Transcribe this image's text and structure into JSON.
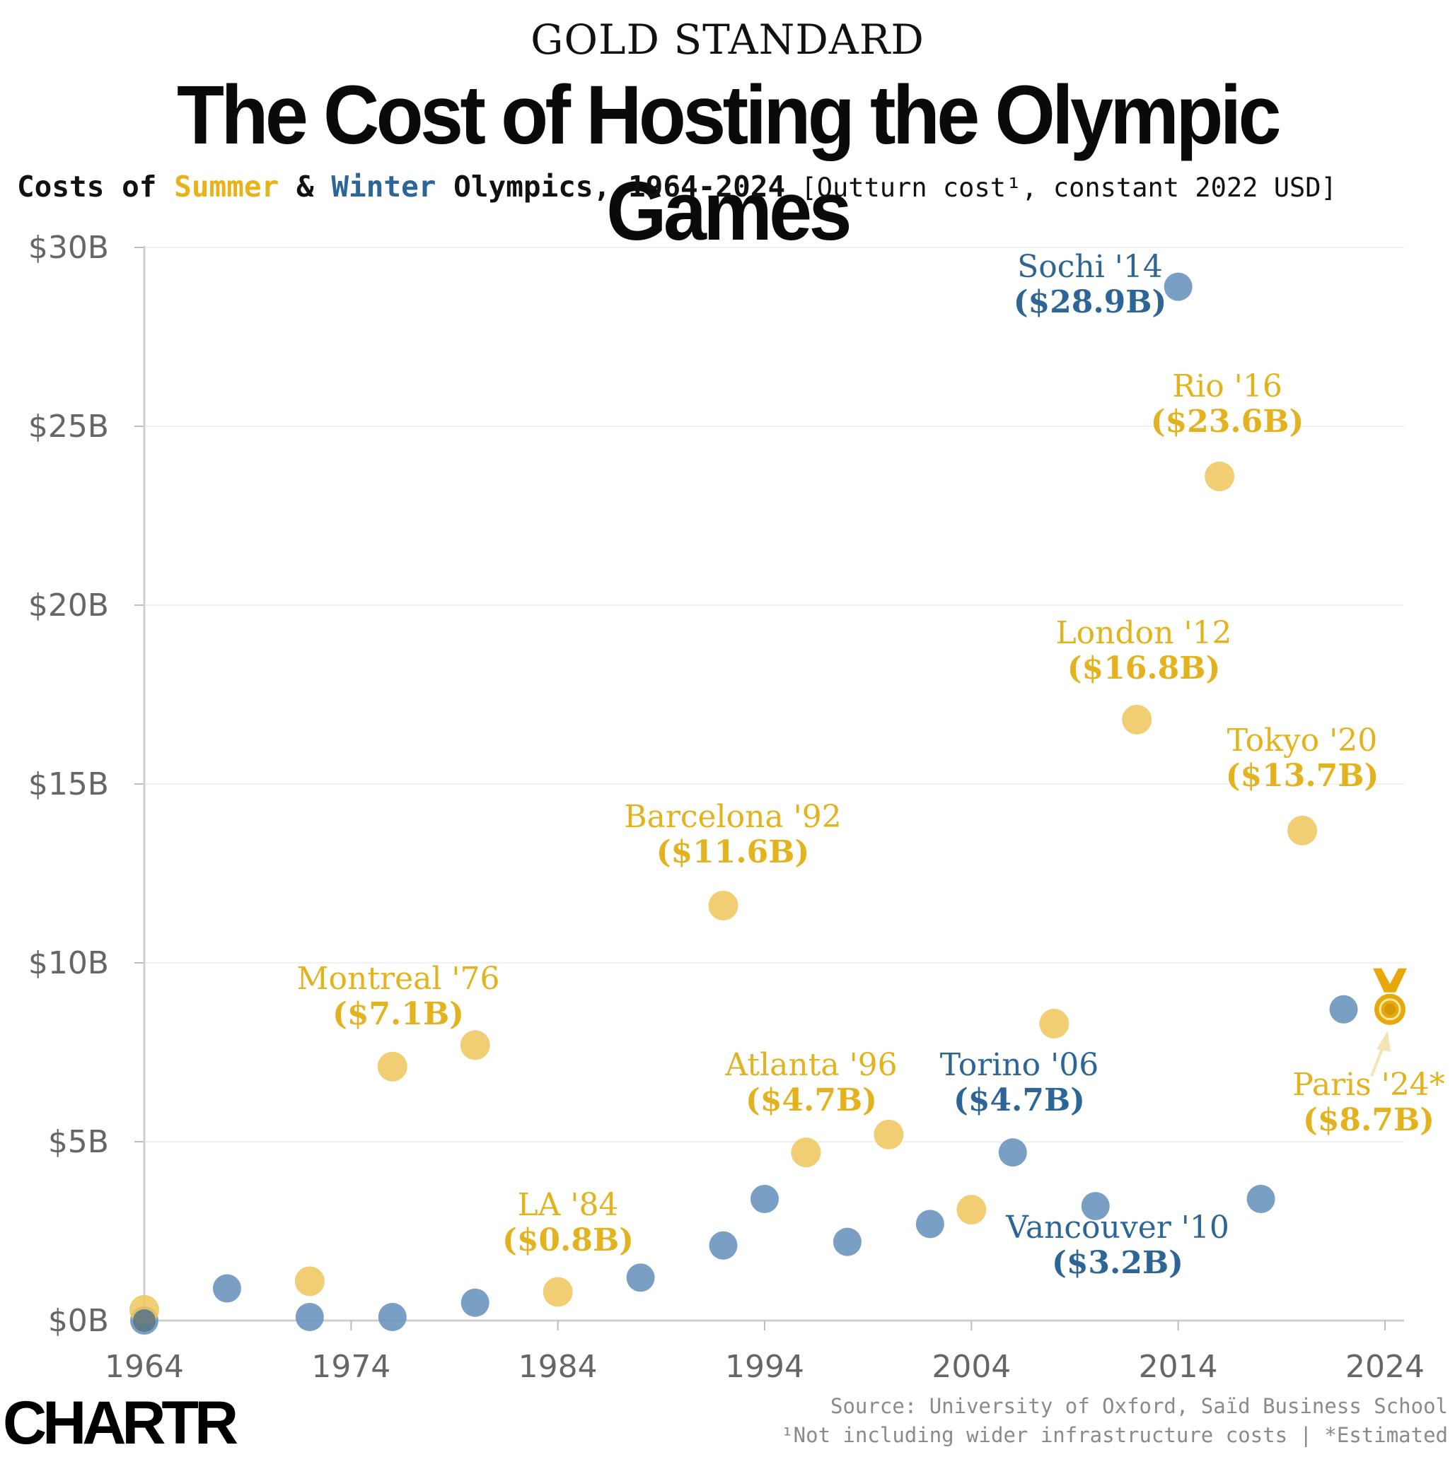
{
  "header": {
    "kicker": "GOLD STANDARD",
    "title": "The Cost of Hosting the Olympic Games",
    "subtitle_prefix": "Costs of ",
    "subtitle_summer": "Summer",
    "subtitle_amp": " & ",
    "subtitle_winter": "Winter",
    "subtitle_rest": " Olympics, 1964-2024",
    "subtitle_unit": " [Outturn cost¹, constant 2022 USD]"
  },
  "colors": {
    "summer": "#eec65a",
    "summer_text": "#e3b21f",
    "winter": "#6f97bf",
    "winter_text": "#2d6596",
    "gold": "#e8a80a"
  },
  "chart_data": {
    "type": "scatter",
    "title": "The Cost of Hosting the Olympic Games",
    "xlim": [
      1964,
      2024
    ],
    "ylim": [
      0,
      30
    ],
    "x_ticks": [
      1964,
      1974,
      1984,
      1994,
      2004,
      2014,
      2024
    ],
    "y_ticks": [
      0,
      5,
      10,
      15,
      20,
      25,
      30
    ],
    "y_tick_labels": [
      "$0B",
      "$5B",
      "$10B",
      "$15B",
      "$20B",
      "$25B",
      "$30B"
    ],
    "series": [
      {
        "name": "Summer",
        "points": [
          {
            "x": 1964,
            "y": 0.3
          },
          {
            "x": 1972,
            "y": 1.1
          },
          {
            "x": 1976,
            "y": 7.1
          },
          {
            "x": 1980,
            "y": 7.7
          },
          {
            "x": 1984,
            "y": 0.8
          },
          {
            "x": 1992,
            "y": 11.6
          },
          {
            "x": 1996,
            "y": 4.7
          },
          {
            "x": 2000,
            "y": 5.2
          },
          {
            "x": 2004,
            "y": 3.1
          },
          {
            "x": 2008,
            "y": 8.3
          },
          {
            "x": 2012,
            "y": 16.8
          },
          {
            "x": 2016,
            "y": 23.6
          },
          {
            "x": 2020,
            "y": 13.7
          },
          {
            "x": 2024,
            "y": 8.7
          }
        ]
      },
      {
        "name": "Winter",
        "points": [
          {
            "x": 1964,
            "y": 0.0
          },
          {
            "x": 1968,
            "y": 0.9
          },
          {
            "x": 1972,
            "y": 0.1
          },
          {
            "x": 1976,
            "y": 0.1
          },
          {
            "x": 1980,
            "y": 0.5
          },
          {
            "x": 1988,
            "y": 1.2
          },
          {
            "x": 1992,
            "y": 2.1
          },
          {
            "x": 1994,
            "y": 3.4
          },
          {
            "x": 1998,
            "y": 2.2
          },
          {
            "x": 2002,
            "y": 2.7
          },
          {
            "x": 2006,
            "y": 4.7
          },
          {
            "x": 2010,
            "y": 3.2
          },
          {
            "x": 2014,
            "y": 28.9
          },
          {
            "x": 2018,
            "y": 3.4
          },
          {
            "x": 2022,
            "y": 8.7
          }
        ]
      }
    ],
    "annotations": [
      {
        "name": "Sochi '14",
        "value": "($28.9B)",
        "season": "winter"
      },
      {
        "name": "Rio '16",
        "value": "($23.6B)",
        "season": "summer"
      },
      {
        "name": "London '12",
        "value": "($16.8B)",
        "season": "summer"
      },
      {
        "name": "Tokyo '20",
        "value": "($13.7B)",
        "season": "summer"
      },
      {
        "name": "Barcelona '92",
        "value": "($11.6B)",
        "season": "summer"
      },
      {
        "name": "Montreal '76",
        "value": "($7.1B)",
        "season": "summer"
      },
      {
        "name": "Atlanta '96",
        "value": "($4.7B)",
        "season": "summer"
      },
      {
        "name": "Torino '06",
        "value": "($4.7B)",
        "season": "winter"
      },
      {
        "name": "Paris '24*",
        "value": "($8.7B)",
        "season": "summer"
      },
      {
        "name": "LA '84",
        "value": "($0.8B)",
        "season": "summer"
      },
      {
        "name": "Vancouver '10",
        "value": "($3.2B)",
        "season": "winter"
      }
    ]
  },
  "footer": {
    "source": "Source: University of Oxford, Saïd Business School",
    "footnote": "¹Not including wider infrastructure costs | *Estimated",
    "logo": "CHARTR"
  }
}
